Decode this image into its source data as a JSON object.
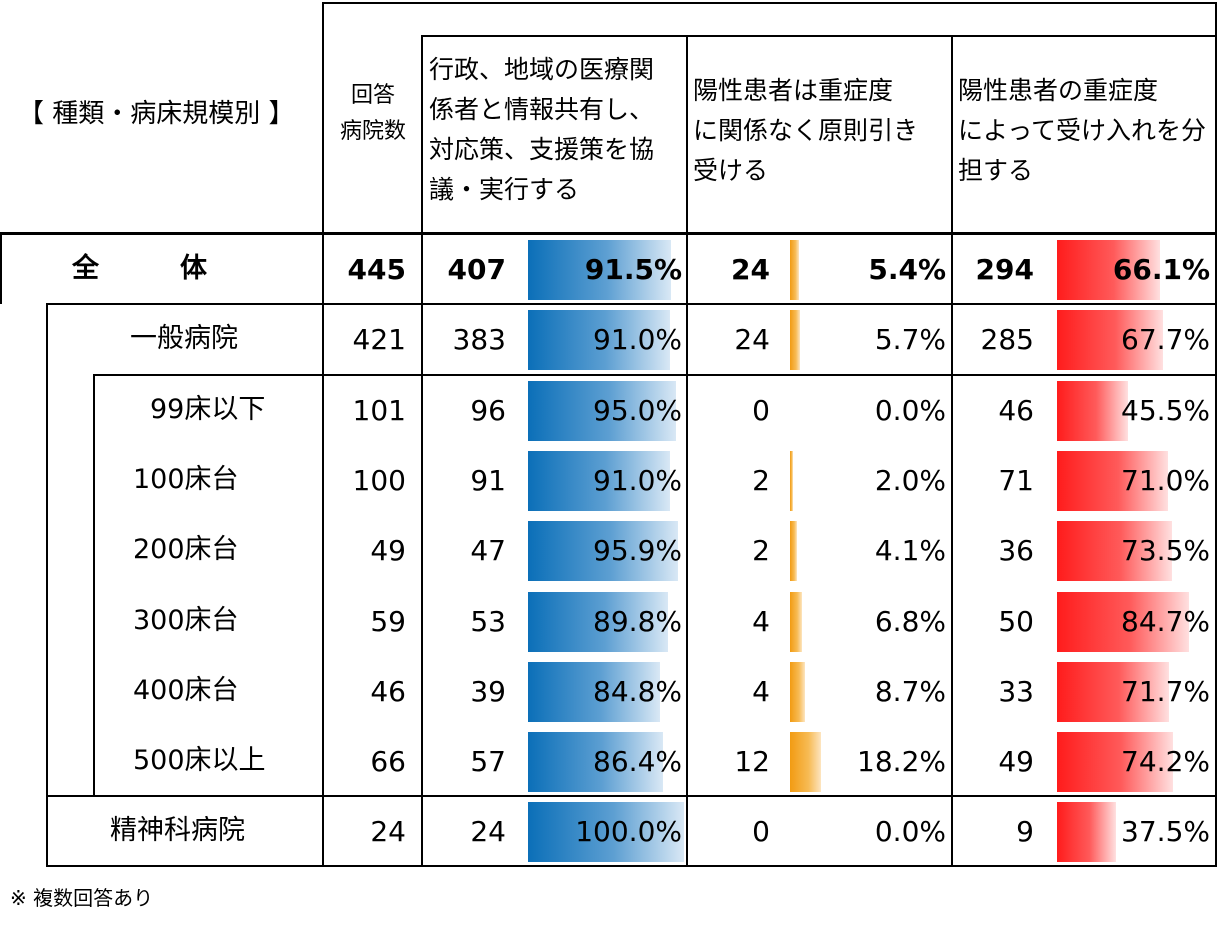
{
  "header": {
    "category_label": "【 種類・病床規模別 】",
    "respondents_line1": "回答",
    "respondents_line2": "病院数",
    "col1": [
      "行政、地域の医療関",
      "係者と情報共有し、",
      "対応策、支援策を協",
      "議・実行する"
    ],
    "col2": [
      "陽性患者は重症度",
      "に関係なく原則引き",
      "受ける"
    ],
    "col3": [
      "陽性患者の重症度",
      "によって受け入れを分",
      "担する"
    ]
  },
  "rows": [
    {
      "label": "全　　　体",
      "n": "445",
      "c1_count": "407",
      "c1_pct": "91.5%",
      "c1_value": 91.5,
      "c2_count": "24",
      "c2_pct": "5.4%",
      "c2_value": 5.4,
      "c3_count": "294",
      "c3_pct": "66.1%",
      "c3_value": 66.1
    },
    {
      "label": "一般病院",
      "n": "421",
      "c1_count": "383",
      "c1_pct": "91.0%",
      "c1_value": 91.0,
      "c2_count": "24",
      "c2_pct": "5.7%",
      "c2_value": 5.7,
      "c3_count": "285",
      "c3_pct": "67.7%",
      "c3_value": 67.7
    },
    {
      "label": "99床以下",
      "n": "101",
      "c1_count": "96",
      "c1_pct": "95.0%",
      "c1_value": 95.0,
      "c2_count": "0",
      "c2_pct": "0.0%",
      "c2_value": 0.0,
      "c3_count": "46",
      "c3_pct": "45.5%",
      "c3_value": 45.5
    },
    {
      "label": "100床台",
      "n": "100",
      "c1_count": "91",
      "c1_pct": "91.0%",
      "c1_value": 91.0,
      "c2_count": "2",
      "c2_pct": "2.0%",
      "c2_value": 2.0,
      "c3_count": "71",
      "c3_pct": "71.0%",
      "c3_value": 71.0
    },
    {
      "label": "200床台",
      "n": "49",
      "c1_count": "47",
      "c1_pct": "95.9%",
      "c1_value": 95.9,
      "c2_count": "2",
      "c2_pct": "4.1%",
      "c2_value": 4.1,
      "c3_count": "36",
      "c3_pct": "73.5%",
      "c3_value": 73.5
    },
    {
      "label": "300床台",
      "n": "59",
      "c1_count": "53",
      "c1_pct": "89.8%",
      "c1_value": 89.8,
      "c2_count": "4",
      "c2_pct": "6.8%",
      "c2_value": 6.8,
      "c3_count": "50",
      "c3_pct": "84.7%",
      "c3_value": 84.7
    },
    {
      "label": "400床台",
      "n": "46",
      "c1_count": "39",
      "c1_pct": "84.8%",
      "c1_value": 84.8,
      "c2_count": "4",
      "c2_pct": "8.7%",
      "c2_value": 8.7,
      "c3_count": "33",
      "c3_pct": "71.7%",
      "c3_value": 71.7
    },
    {
      "label": "500床以上",
      "n": "66",
      "c1_count": "57",
      "c1_pct": "86.4%",
      "c1_value": 86.4,
      "c2_count": "12",
      "c2_pct": "18.2%",
      "c2_value": 18.2,
      "c3_count": "49",
      "c3_pct": "74.2%",
      "c3_value": 74.2
    },
    {
      "label": "精神科病院",
      "n": "24",
      "c1_count": "24",
      "c1_pct": "100.0%",
      "c1_value": 100.0,
      "c2_count": "0",
      "c2_pct": "0.0%",
      "c2_value": 0.0,
      "c3_count": "9",
      "c3_pct": "37.5%",
      "c3_value": 37.5
    }
  ],
  "colors": {
    "col1_bar": "#0b6fb8",
    "col2_bar": "#f29b12",
    "col3_bar": "#ff1c1c"
  },
  "footnote": "※ 複数回答あり"
}
